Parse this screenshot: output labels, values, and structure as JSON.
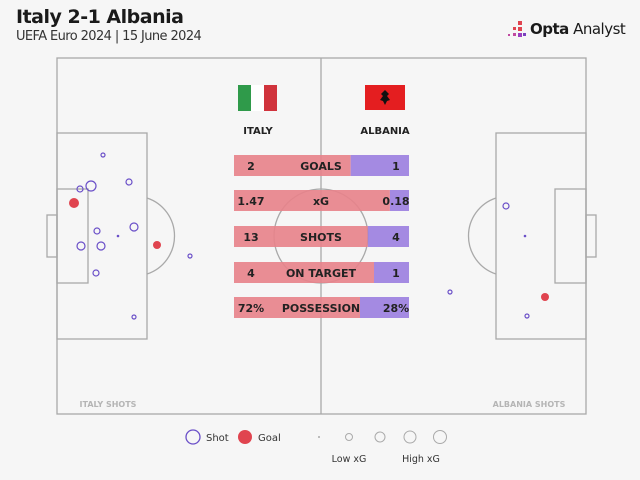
{
  "header": {
    "title": "Italy 2-1 Albania",
    "subtitle": "UEFA Euro 2024 | 15 June 2024",
    "logo_bold": "Opta",
    "logo_light": "Analyst"
  },
  "teams": {
    "home": "ITALY",
    "away": "ALBANIA",
    "home_shots_label": "ITALY SHOTS",
    "away_shots_label": "ALBANIA SHOTS"
  },
  "colors": {
    "home": "#e8828a",
    "away": "#9b7ee0",
    "goal": "#e0444f",
    "shot_stroke": "#6a4fc8",
    "pitch_line": "#a9a9a9"
  },
  "chart_data": {
    "type": "table",
    "stats": [
      {
        "label": "GOALS",
        "home": "2",
        "away": "1",
        "home_value": 2,
        "away_value": 1
      },
      {
        "label": "xG",
        "home": "1.47",
        "away": "0.18",
        "home_value": 1.47,
        "away_value": 0.18
      },
      {
        "label": "SHOTS",
        "home": "13",
        "away": "4",
        "home_value": 13,
        "away_value": 4
      },
      {
        "label": "ON TARGET",
        "home": "4",
        "away": "1",
        "home_value": 4,
        "away_value": 1
      },
      {
        "label": "POSSESSION",
        "home": "72%",
        "away": "28%",
        "home_value": 72,
        "away_value": 28
      }
    ]
  },
  "legend": {
    "shot": "Shot",
    "goal": "Goal",
    "low_xg": "Low xG",
    "high_xg": "High xG"
  }
}
